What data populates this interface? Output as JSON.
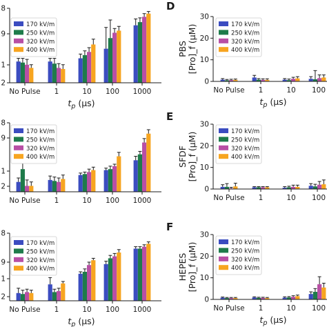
{
  "colors": {
    "s170": "#3b4cc0",
    "s250": "#1e7b4a",
    "s320": "#b84fa5",
    "s400": "#f7a520"
  },
  "chart_data": [
    {
      "id": "left-top",
      "type": "bar",
      "letter": "",
      "ylabel_lines": [],
      "y_ticks": [
        "8",
        "9",
        "1",
        "2"
      ],
      "categories": [
        "No Pulse",
        "1",
        "10",
        "100",
        "1000"
      ],
      "xlabel_base": "t",
      "xlabel_sub": "p",
      "xlabel_unit": " (μs)",
      "legend": [
        "170 kV/m",
        "250 kV/m",
        "320 kV/m",
        "400 kV/m"
      ],
      "series": [
        {
          "name": "170 kV/m",
          "values": [
            1.0,
            1.0,
            1.15,
            1.6,
            2.7
          ]
        },
        {
          "name": "250 kV/m",
          "values": [
            0.95,
            0.9,
            1.3,
            2.1,
            2.85
          ]
        },
        {
          "name": "320 kV/m",
          "values": [
            0.85,
            0.7,
            1.45,
            2.35,
            3.1
          ]
        },
        {
          "name": "400 kV/m",
          "values": [
            0.7,
            0.65,
            1.8,
            2.45,
            3.25
          ]
        }
      ],
      "errors": [
        [
          0.15,
          0.15,
          0.2,
          1.0,
          0.3
        ],
        [
          0.2,
          0.25,
          0.2,
          0.85,
          0.2
        ],
        [
          0.25,
          0.2,
          0.2,
          0.2,
          0.15
        ],
        [
          0.15,
          0.2,
          0.25,
          0.2,
          0.1
        ]
      ]
    },
    {
      "id": "left-middle",
      "type": "bar",
      "letter": "",
      "ylabel_lines": [],
      "y_ticks": [
        "8",
        "9",
        "1",
        "2"
      ],
      "categories": [
        "No Pulse",
        "1",
        "10",
        "100",
        "1000"
      ],
      "xlabel_base": "",
      "xlabel_sub": "",
      "xlabel_unit": "",
      "legend": [
        "170 kV/m",
        "250 kV/m",
        "320 kV/m",
        "400 kV/m"
      ],
      "series": [
        {
          "name": "170 kV/m",
          "values": [
            0.5,
            0.6,
            0.85,
            1.1,
            1.6
          ]
        },
        {
          "name": "250 kV/m",
          "values": [
            1.15,
            0.55,
            0.9,
            1.15,
            1.9
          ]
        },
        {
          "name": "320 kV/m",
          "values": [
            0.3,
            0.5,
            1.0,
            1.3,
            2.5
          ]
        },
        {
          "name": "400 kV/m",
          "values": [
            0.3,
            0.65,
            1.1,
            1.8,
            2.95
          ]
        }
      ],
      "errors": [
        [
          0.2,
          0.2,
          0.1,
          0.1,
          0.2
        ],
        [
          0.9,
          0.2,
          0.1,
          0.15,
          0.15
        ],
        [
          0.3,
          0.2,
          0.15,
          0.1,
          0.2
        ],
        [
          0.2,
          0.2,
          0.15,
          0.2,
          0.2
        ]
      ]
    },
    {
      "id": "left-bottom",
      "type": "bar",
      "letter": "",
      "ylabel_lines": [],
      "y_ticks": [
        "8",
        "9",
        "1",
        "2"
      ],
      "categories": [
        "No Pulse",
        "1",
        "10",
        "100",
        "1000"
      ],
      "xlabel_base": "t",
      "xlabel_sub": "p",
      "xlabel_unit": " (μs)",
      "legend": [
        "170 kV/m",
        "250 kV/m",
        "320 kV/m",
        "400 kV/m"
      ],
      "series": [
        {
          "name": "170 kV/m",
          "values": [
            0.4,
            0.85,
            1.4,
            1.9,
            2.7
          ]
        },
        {
          "name": "250 kV/m",
          "values": [
            0.35,
            0.45,
            1.5,
            2.2,
            2.7
          ]
        },
        {
          "name": "320 kV/m",
          "values": [
            0.45,
            0.5,
            1.85,
            2.3,
            2.8
          ]
        },
        {
          "name": "400 kV/m",
          "values": [
            0.4,
            0.9,
            2.1,
            2.5,
            2.95
          ]
        }
      ],
      "errors": [
        [
          0.25,
          0.35,
          0.1,
          0.15,
          0.1
        ],
        [
          0.2,
          0.15,
          0.15,
          0.15,
          0.1
        ],
        [
          0.15,
          0.15,
          0.15,
          0.15,
          0.1
        ],
        [
          0.15,
          0.1,
          0.1,
          0.15,
          0.1
        ]
      ]
    },
    {
      "id": "panel-D",
      "type": "bar",
      "letter": "D",
      "ylabel_lines": [
        "PBS",
        "[Pro]_f (μM)"
      ],
      "y_ticks": [
        "0",
        "10",
        "20",
        "30"
      ],
      "ylim": [
        0,
        30
      ],
      "categories": [
        "No Pulse",
        "1",
        "10",
        "100"
      ],
      "xlabel_base": "t",
      "xlabel_sub": "p",
      "xlabel_unit": " (μs)",
      "legend": [
        "170 kV/m",
        "250 kV/m",
        "320 kV/m",
        "400 kV/m"
      ],
      "series": [
        {
          "name": "170 kV/m",
          "values": [
            0.8,
            1.8,
            0.8,
            1.2
          ]
        },
        {
          "name": "250 kV/m",
          "values": [
            0.5,
            0.8,
            0.6,
            1.0
          ]
        },
        {
          "name": "320 kV/m",
          "values": [
            0.6,
            0.7,
            1.2,
            1.5
          ]
        },
        {
          "name": "400 kV/m",
          "values": [
            0.7,
            0.7,
            1.4,
            1.8
          ]
        }
      ],
      "errors": [
        [
          0.5,
          1.0,
          0.5,
          1.0
        ],
        [
          0.4,
          0.5,
          0.5,
          4.0
        ],
        [
          0.4,
          0.5,
          0.7,
          1.5
        ],
        [
          0.4,
          0.5,
          0.8,
          1.2
        ]
      ]
    },
    {
      "id": "panel-E",
      "type": "bar",
      "letter": "E",
      "ylabel_lines": [
        "SFDF",
        "[Pro]_f (μM)"
      ],
      "y_ticks": [
        "0",
        "10",
        "20",
        "30"
      ],
      "ylim": [
        0,
        30
      ],
      "categories": [
        "No Pulse",
        "1",
        "10",
        "100"
      ],
      "xlabel_base": "",
      "xlabel_sub": "",
      "xlabel_unit": "",
      "legend": [
        "170 kV/m",
        "250 kV/m",
        "320 kV/m",
        "400 kV/m"
      ],
      "series": [
        {
          "name": "170 kV/m",
          "values": [
            1.0,
            0.8,
            0.6,
            1.5
          ]
        },
        {
          "name": "250 kV/m",
          "values": [
            1.0,
            0.8,
            0.8,
            1.2
          ]
        },
        {
          "name": "320 kV/m",
          "values": [
            0.3,
            0.8,
            1.0,
            2.0
          ]
        },
        {
          "name": "400 kV/m",
          "values": [
            1.2,
            0.8,
            1.0,
            2.2
          ]
        }
      ],
      "errors": [
        [
          1.0,
          0.3,
          0.5,
          1.0
        ],
        [
          1.5,
          0.3,
          0.5,
          1.0
        ],
        [
          0.5,
          0.3,
          0.8,
          1.5
        ],
        [
          1.5,
          0.3,
          0.8,
          2.0
        ]
      ]
    },
    {
      "id": "panel-F",
      "type": "bar",
      "letter": "F",
      "ylabel_lines": [
        "HEPES",
        "[Pro]_f (μM)"
      ],
      "y_ticks": [
        "0",
        "10",
        "20",
        "30"
      ],
      "ylim": [
        0,
        30
      ],
      "categories": [
        "No Pulse",
        "1",
        "10",
        "100"
      ],
      "xlabel_base": "t",
      "xlabel_sub": "p",
      "xlabel_unit": " (μs)",
      "legend": [
        "170 kV/m",
        "250 kV/m",
        "320 kV/m",
        "400 kV/m"
      ],
      "series": [
        {
          "name": "170 kV/m",
          "values": [
            0.8,
            0.9,
            0.8,
            2.5
          ]
        },
        {
          "name": "250 kV/m",
          "values": [
            0.6,
            0.7,
            0.9,
            3.5
          ]
        },
        {
          "name": "320 kV/m",
          "values": [
            0.6,
            0.7,
            1.2,
            7.0
          ]
        },
        {
          "name": "400 kV/m",
          "values": [
            0.6,
            0.6,
            1.5,
            5.5
          ]
        }
      ],
      "errors": [
        [
          0.3,
          0.3,
          0.4,
          1.0
        ],
        [
          0.3,
          0.3,
          0.4,
          1.5
        ],
        [
          0.3,
          0.3,
          0.5,
          3.5
        ],
        [
          0.3,
          0.3,
          0.5,
          2.0
        ]
      ]
    }
  ]
}
